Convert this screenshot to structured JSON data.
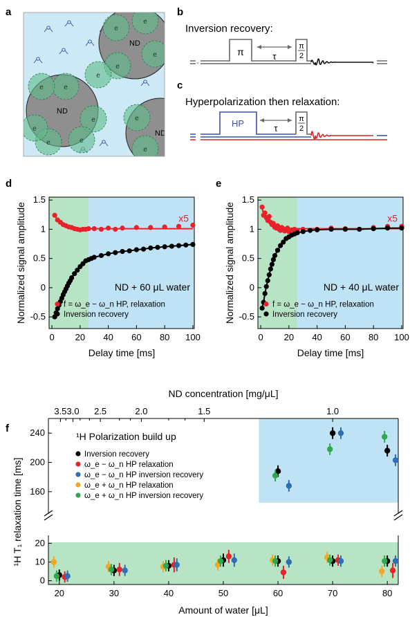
{
  "panel_labels": {
    "a": "a",
    "b": "b",
    "c": "c",
    "d": "d",
    "e": "e",
    "f": "f"
  },
  "panel_a": {
    "nd_label": "ND",
    "e_label": "e",
    "colors": {
      "water": "#cce9f5",
      "nd": "#8f8f8f",
      "electron": "#5fbd8c",
      "molecule": "#2c4aa3"
    }
  },
  "panel_b": {
    "title": "Inversion recovery:",
    "pulse1": "π",
    "delay": "τ",
    "pulse2_num": "π",
    "pulse2_den": "2"
  },
  "panel_c": {
    "title": "Hyperpolarization then relaxation:",
    "pulse1": "HP",
    "delay": "τ",
    "pulse2_num": "π",
    "pulse2_den": "2",
    "colors": {
      "hp": "#3a4fb0",
      "relax": "#e02020"
    }
  },
  "legend_common": {
    "hp_label": "f = ω_e − ω_n HP, relaxation",
    "ir_label": "Inversion recovery"
  },
  "colors": {
    "red": "#e8212a",
    "black": "#000000",
    "green_zone": "#b7e4c5",
    "blue_zone": "#bfe3f4",
    "blue": "#2f6db5",
    "orange": "#f5a623",
    "green": "#2fa84f"
  },
  "chart_data": [
    {
      "type": "scatter",
      "panel": "d",
      "annotation": "ND + 60 μL water",
      "scale_note": "x5",
      "xlabel": "Delay time [ms]",
      "ylabel": "Normalized signal amplitude",
      "xlim": [
        -2,
        101
      ],
      "ylim": [
        -0.7,
        1.55
      ],
      "xticks": [
        0,
        20,
        40,
        60,
        80,
        100
      ],
      "yticks": [
        -0.5,
        0,
        0.5,
        1,
        1.5
      ],
      "shaded": [
        {
          "from": -2,
          "to": 26,
          "color": "green"
        },
        {
          "from": 26,
          "to": 101,
          "color": "blue"
        }
      ],
      "series": [
        {
          "role": "hp",
          "x": [
            2,
            4,
            6,
            8,
            10,
            12,
            14,
            16,
            18,
            20,
            22,
            24,
            26,
            30,
            35,
            40,
            45,
            50,
            60,
            70,
            80,
            90,
            100
          ],
          "y": [
            1.24,
            1.16,
            1.12,
            1.08,
            1.06,
            1.04,
            1.03,
            1.01,
            1.0,
            0.99,
            1.0,
            1.0,
            1.01,
            1.01,
            1.0,
            1.02,
            1.0,
            1.02,
            1.03,
            1.03,
            1.04,
            1.05,
            1.07
          ]
        },
        {
          "role": "ir",
          "x": [
            2,
            3,
            4,
            5,
            6,
            7,
            8,
            9,
            10,
            11,
            12,
            13,
            14,
            16,
            18,
            20,
            22,
            24,
            26,
            28,
            30,
            35,
            40,
            45,
            50,
            55,
            60,
            65,
            70,
            75,
            80,
            85,
            90,
            95,
            100
          ],
          "y": [
            -0.5,
            -0.43,
            -0.36,
            -0.3,
            -0.24,
            -0.18,
            -0.12,
            -0.07,
            -0.02,
            0.03,
            0.08,
            0.12,
            0.17,
            0.24,
            0.3,
            0.36,
            0.41,
            0.46,
            0.48,
            0.5,
            0.52,
            0.55,
            0.58,
            0.6,
            0.62,
            0.63,
            0.65,
            0.66,
            0.68,
            0.69,
            0.7,
            0.71,
            0.72,
            0.73,
            0.74
          ]
        }
      ]
    },
    {
      "type": "scatter",
      "panel": "e",
      "annotation": "ND + 40 μL water",
      "scale_note": "x5",
      "xlabel": "Delay time [ms]",
      "ylabel": "Normalized signal amplitude",
      "xlim": [
        -2,
        101
      ],
      "ylim": [
        -0.7,
        1.55
      ],
      "xticks": [
        0,
        20,
        40,
        60,
        80,
        100
      ],
      "yticks": [
        -0.5,
        0,
        0.5,
        1,
        1.5
      ],
      "shaded": [
        {
          "from": -2,
          "to": 26,
          "color": "green"
        },
        {
          "from": 26,
          "to": 101,
          "color": "blue"
        }
      ],
      "series": [
        {
          "role": "hp",
          "x": [
            1,
            2,
            3,
            4,
            5,
            6,
            7,
            8,
            9,
            10,
            11,
            12,
            13,
            14,
            15,
            16,
            17,
            18,
            19,
            20,
            22,
            24,
            26,
            30,
            40,
            50,
            60,
            70,
            80,
            90,
            100
          ],
          "y": [
            1.38,
            1.24,
            1.28,
            1.2,
            1.15,
            1.22,
            1.12,
            1.08,
            1.1,
            1.05,
            1.02,
            1.06,
            1.0,
            0.98,
            1.03,
            1.01,
            0.97,
            0.99,
            1.02,
            0.96,
            0.99,
            1.0,
            0.98,
            1.0,
            1.0,
            1.02,
            1.01,
            1.0,
            1.03,
            1.05,
            1.05
          ]
        },
        {
          "role": "ir",
          "x": [
            1,
            2,
            3,
            4,
            5,
            6,
            7,
            8,
            9,
            10,
            12,
            14,
            16,
            18,
            20,
            22,
            24,
            26,
            30,
            35,
            40,
            50,
            60,
            70,
            80,
            90,
            100
          ],
          "y": [
            -0.35,
            -0.25,
            -0.1,
            0.02,
            0.12,
            0.22,
            0.32,
            0.4,
            0.48,
            0.55,
            0.64,
            0.72,
            0.78,
            0.84,
            0.87,
            0.9,
            0.92,
            0.94,
            0.96,
            0.98,
            0.99,
            1.0,
            1.0,
            1.0,
            1.01,
            1.02,
            1.02
          ]
        }
      ]
    },
    {
      "type": "scatter",
      "panel": "f",
      "title": "¹H Polarization build up",
      "xlabel": "Amount of water [μL]",
      "ylabel": "¹H T₁ relaxation time [ms]",
      "top_axis_label": "ND concentration [mg/μL]",
      "top_ticks": [
        {
          "label": "3.5",
          "at": 20.2
        },
        {
          "label": "3.0",
          "at": 22.5
        },
        {
          "label": "2.5",
          "at": 27.5
        },
        {
          "label": "2.0",
          "at": 35
        },
        {
          "label": "1.5",
          "at": 46.5
        },
        {
          "label": "1.0",
          "at": 70
        }
      ],
      "xlim": [
        18,
        82
      ],
      "xticks": [
        20,
        30,
        40,
        50,
        60,
        70,
        80
      ],
      "ylim_lower": [
        -2,
        22
      ],
      "yticks_lower": [
        0,
        10,
        20
      ],
      "ylim_upper": [
        140,
        260
      ],
      "yticks_upper": [
        160,
        200,
        240
      ],
      "legend": [
        "Inversion recovery",
        "ω_e − ω_n HP relaxation",
        "ω_e − ω_n HP inversion recovery",
        "ω_e + ω_n HP relaxation",
        "ω_e + ω_n HP inversion recovery"
      ],
      "series": [
        {
          "name": "Inversion recovery",
          "color": "black",
          "x": [
            20,
            30,
            40,
            50,
            60,
            70,
            80
          ],
          "y": [
            3,
            5.5,
            8,
            11,
            10.5,
            10.5,
            10.5
          ],
          "err": [
            3,
            3,
            3,
            3.5,
            3,
            3,
            3
          ],
          "upper_x": [
            60,
            70,
            80
          ],
          "upper_y": [
            188,
            240,
            216
          ],
          "upper_err": [
            8,
            8,
            8
          ]
        },
        {
          "name": "ω_e − ω_n HP relaxation",
          "color": "red",
          "x": [
            21,
            31,
            41,
            51,
            61,
            71,
            81
          ],
          "y": [
            2,
            6,
            8.5,
            13,
            4.5,
            11,
            5.5
          ],
          "err": [
            3,
            3.5,
            4,
            3.5,
            3.5,
            3,
            4
          ],
          "upper_x": [],
          "upper_y": [],
          "upper_err": []
        },
        {
          "name": "ω_e − ω_n HP inversion recovery",
          "color": "blue",
          "x": [
            21.5,
            32,
            41.5,
            52,
            62,
            71.5,
            81.5
          ],
          "y": [
            2.5,
            5.5,
            8.5,
            11,
            10,
            10.5,
            10.5
          ],
          "err": [
            3,
            3,
            3.5,
            3.5,
            3,
            3,
            3
          ],
          "upper_x": [
            62,
            71.5,
            81.5
          ],
          "upper_y": [
            168,
            240,
            203
          ],
          "upper_err": [
            8,
            8,
            8
          ]
        },
        {
          "name": "ω_e + ω_n HP relaxation",
          "color": "orange",
          "x": [
            19,
            29,
            39,
            49,
            59,
            69,
            79
          ],
          "y": [
            10,
            7.5,
            7.5,
            8.5,
            11,
            12.5,
            5
          ],
          "err": [
            3,
            3,
            3,
            3,
            3,
            3,
            3
          ],
          "upper_x": [],
          "upper_y": [],
          "upper_err": []
        },
        {
          "name": "ω_e + ω_n HP inversion recovery",
          "color": "green",
          "x": [
            19.5,
            29.5,
            39.5,
            49.5,
            59.5,
            69.5,
            79.5
          ],
          "y": [
            2.5,
            6,
            8,
            10.5,
            10.5,
            11,
            10.5
          ],
          "err": [
            3,
            3,
            3,
            3,
            3,
            3,
            3
          ],
          "upper_x": [
            59.5,
            69.5,
            79.5
          ],
          "upper_y": [
            182,
            218,
            235
          ],
          "upper_err": [
            8,
            8,
            8
          ]
        }
      ]
    }
  ]
}
